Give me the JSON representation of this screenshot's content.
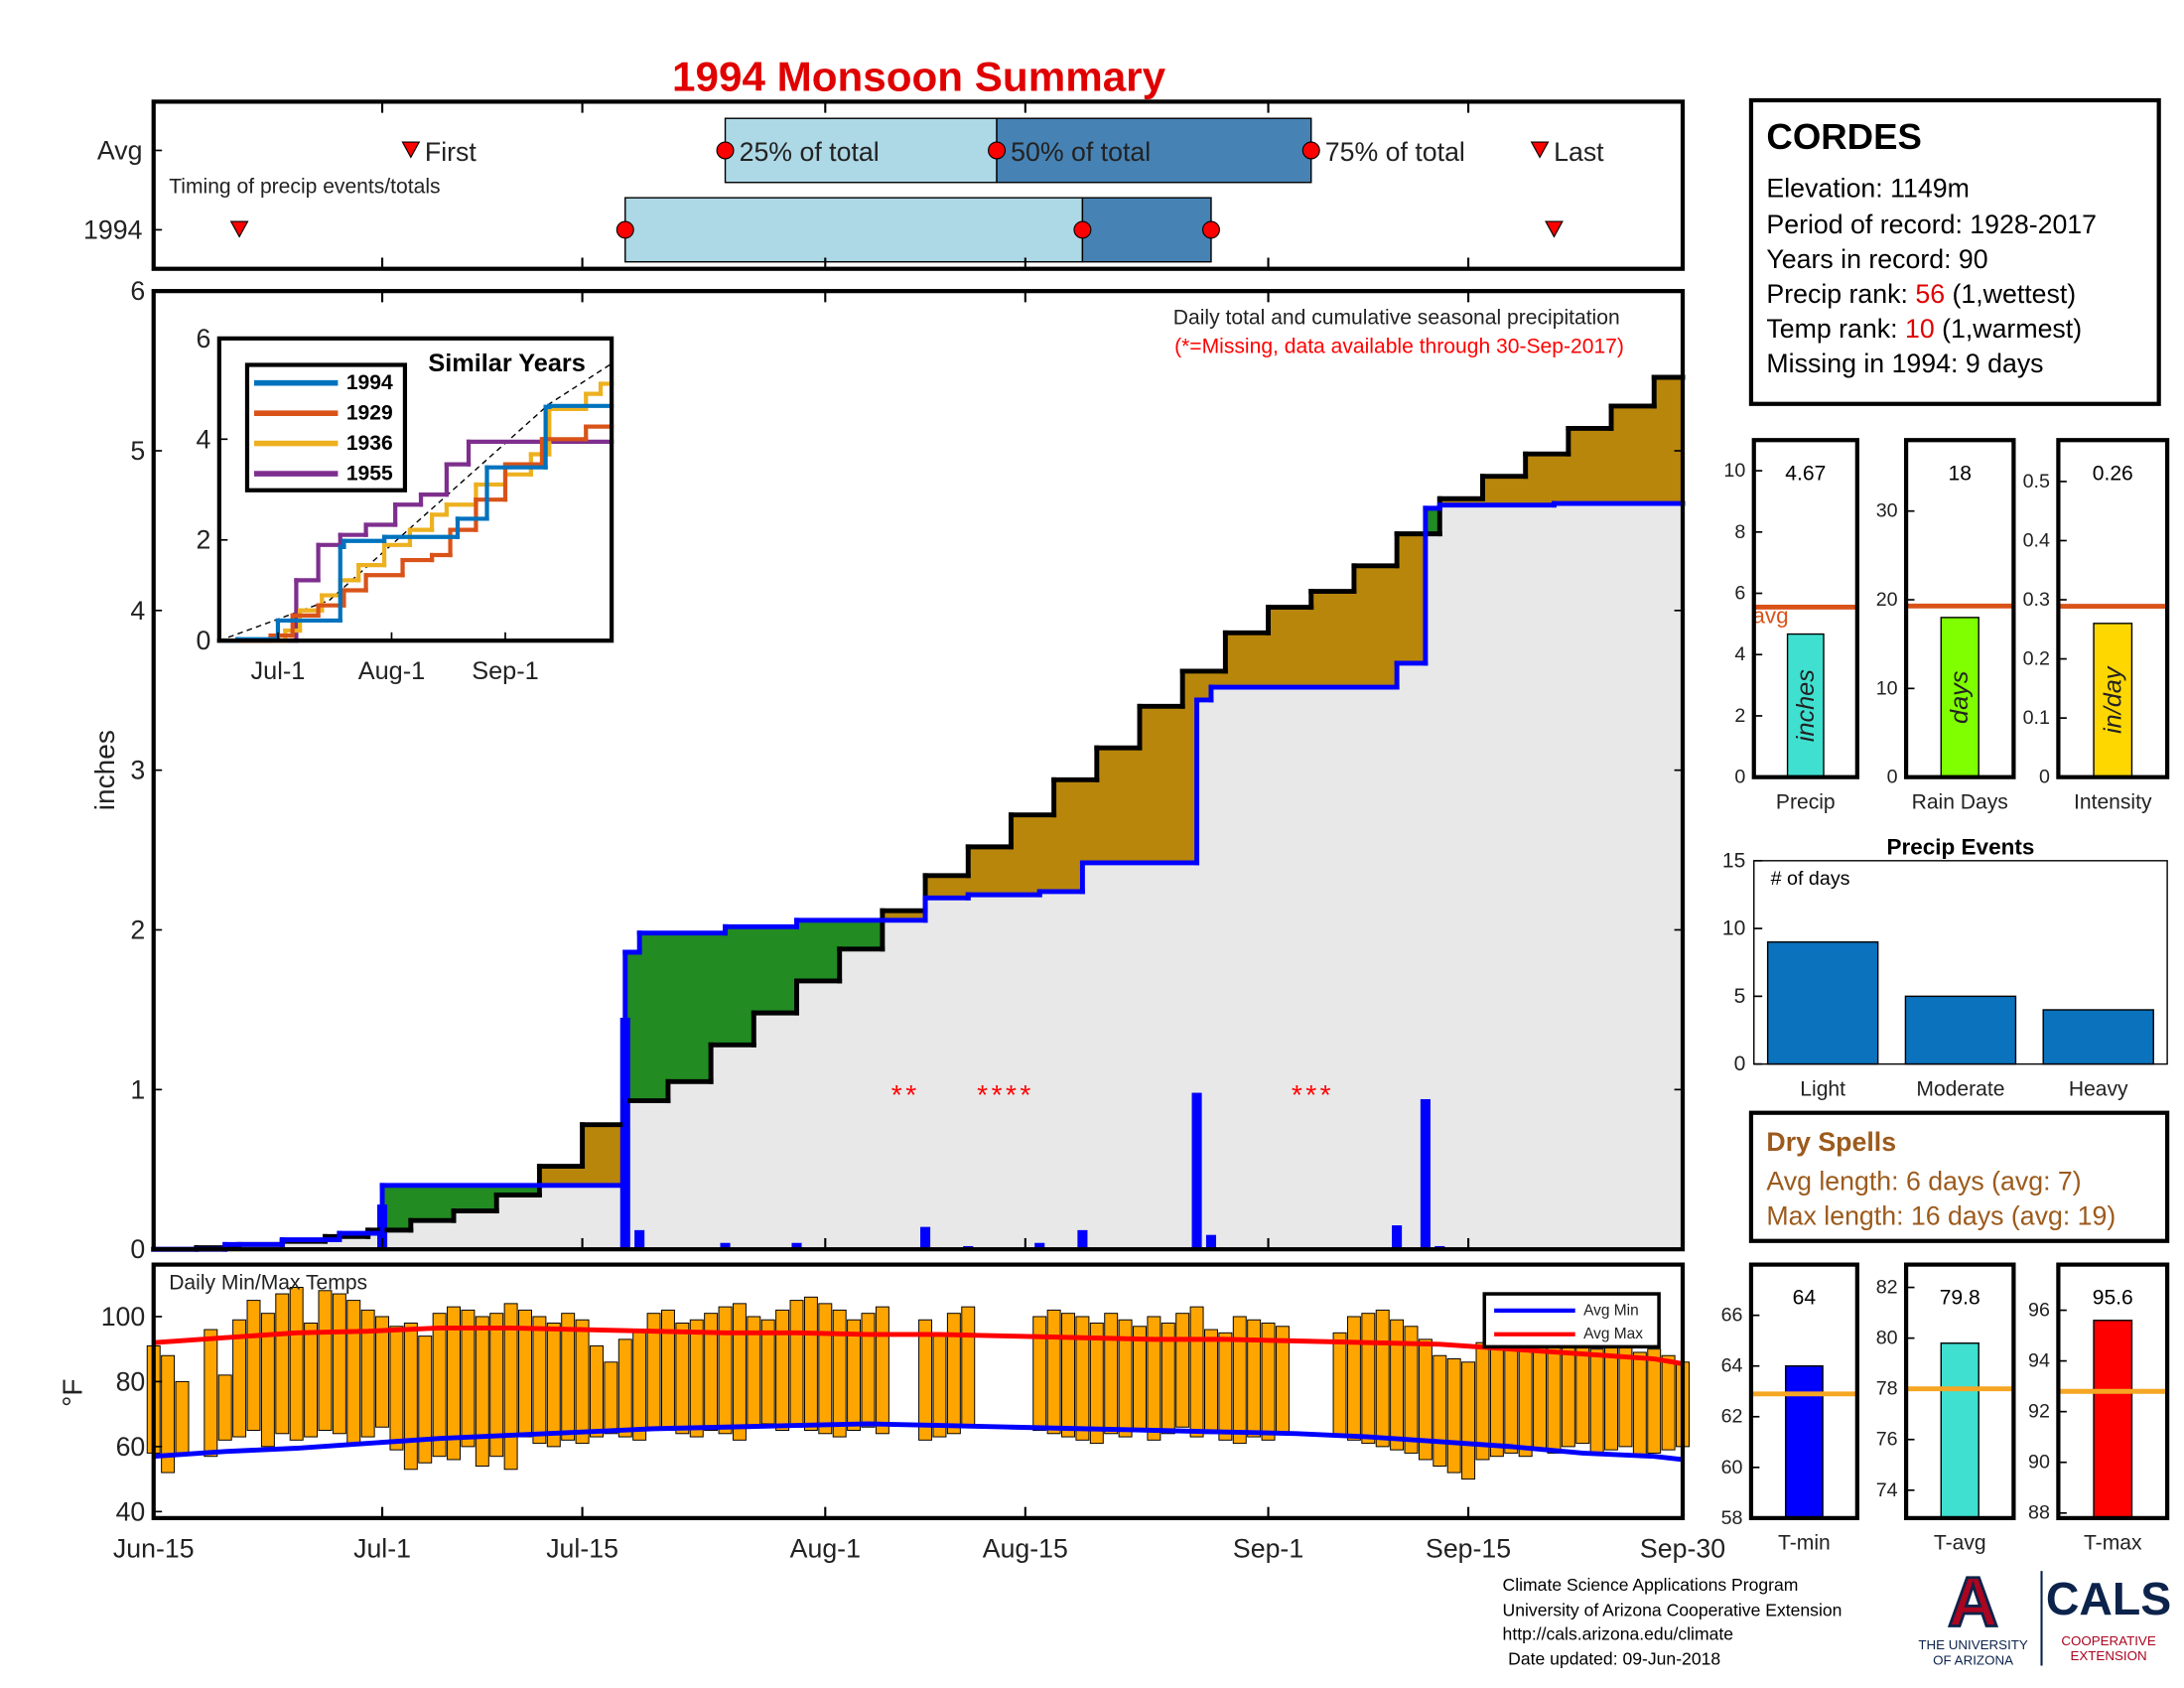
{
  "title": "1994 Monsoon Summary",
  "chart_data": [
    {
      "type": "timing",
      "subtitle": "Timing of precip events/totals",
      "marker_labels": [
        "First",
        "25% of total",
        "50% of total",
        "75% of total",
        "Last"
      ],
      "xlim": [
        0,
        107
      ],
      "marker_color": "#ff0000",
      "bar_colors": [
        "#add8e6",
        "#4682b4"
      ],
      "series": [
        {
          "name": "Avg",
          "values": [
            18,
            40,
            59,
            81,
            97
          ]
        },
        {
          "name": "1994",
          "values": [
            6,
            33,
            65,
            74,
            98
          ]
        }
      ]
    },
    {
      "type": "step",
      "ylabel": "inches",
      "xlim": [
        0,
        107
      ],
      "ylim": [
        0,
        6
      ],
      "yticks": [
        0,
        1,
        2,
        3,
        4,
        5,
        6
      ],
      "annotation": "Daily total and cumulative seasonal precipitation",
      "note": "(*=Missing, data available through 30-Sep-2017)",
      "fills": {
        "above": "#228b22",
        "below": "#b8860b",
        "base": "#e8e8e8"
      },
      "series": [
        {
          "color": "#000000",
          "x": [
            0,
            3,
            6,
            9,
            12,
            15,
            18,
            21,
            24,
            27,
            30,
            33,
            36,
            39,
            42,
            45,
            48,
            51,
            54,
            57,
            60,
            63,
            66,
            69,
            72,
            75,
            78,
            81,
            84,
            87,
            90,
            93,
            96,
            99,
            102,
            105
          ],
          "values": [
            0,
            0.01,
            0.03,
            0.05,
            0.08,
            0.12,
            0.18,
            0.24,
            0.34,
            0.52,
            0.78,
            0.93,
            1.05,
            1.28,
            1.48,
            1.68,
            1.88,
            2.12,
            2.34,
            2.52,
            2.72,
            2.94,
            3.14,
            3.4,
            3.62,
            3.86,
            4.02,
            4.12,
            4.28,
            4.48,
            4.7,
            4.84,
            4.98,
            5.14,
            5.28,
            5.46
          ]
        },
        {
          "color": "#0000ff",
          "x": [
            0,
            5,
            9,
            13,
            16,
            33,
            34,
            40,
            45,
            54,
            57,
            62,
            65,
            73,
            74,
            87,
            89,
            90,
            98
          ],
          "values": [
            0,
            0.03,
            0.06,
            0.1,
            0.4,
            1.86,
            1.98,
            2.02,
            2.06,
            2.2,
            2.22,
            2.24,
            2.42,
            3.44,
            3.52,
            3.67,
            4.64,
            4.66,
            4.67
          ]
        }
      ],
      "bars": {
        "color": "#0000ff",
        "x": [
          16,
          33,
          34,
          40,
          45,
          54,
          57,
          62,
          65,
          73,
          74,
          87,
          89,
          90
        ],
        "values": [
          0.28,
          1.45,
          0.12,
          0.04,
          0.04,
          0.14,
          0.02,
          0.04,
          0.12,
          0.98,
          0.09,
          0.15,
          0.94,
          0.02
        ]
      },
      "missing_marker": "*",
      "missing_color": "#ff0000",
      "missing_x": [
        52,
        53,
        58,
        59,
        60,
        61,
        80,
        81,
        82
      ]
    },
    {
      "type": "step",
      "title": "Similar Years",
      "xlim": [
        0,
        107
      ],
      "ylim": [
        0,
        6
      ],
      "yticks": [
        0,
        2,
        4,
        6
      ],
      "xticks": [
        {
          "value": 16,
          "label": "Jul-1"
        },
        {
          "value": 47,
          "label": "Aug-1"
        },
        {
          "value": 78,
          "label": "Sep-1"
        }
      ],
      "series": [
        {
          "name": "1994",
          "color": "#0072bd",
          "x": [
            0,
            5,
            16,
            33,
            34,
            45,
            65,
            73,
            89,
            90
          ],
          "values": [
            0,
            0.03,
            0.4,
            1.86,
            1.98,
            2.06,
            2.42,
            3.44,
            4.64,
            4.66
          ]
        },
        {
          "name": "1929",
          "color": "#d95319",
          "x": [
            0,
            14,
            20,
            27,
            34,
            40,
            50,
            58,
            63,
            70,
            78,
            88,
            100
          ],
          "values": [
            0,
            0.1,
            0.5,
            0.7,
            1.0,
            1.3,
            1.6,
            1.7,
            2.2,
            2.8,
            3.5,
            4.0,
            4.25
          ]
        },
        {
          "name": "1936",
          "color": "#edb120",
          "x": [
            0,
            18,
            22,
            28,
            33,
            38,
            45,
            52,
            58,
            62,
            70,
            78,
            85,
            90,
            100,
            104
          ],
          "values": [
            0,
            0.2,
            0.6,
            0.9,
            1.2,
            1.5,
            1.9,
            2.2,
            2.5,
            2.7,
            3.1,
            3.3,
            3.7,
            4.6,
            4.9,
            5.1
          ]
        },
        {
          "name": "1955",
          "color": "#7e2f8e",
          "x": [
            0,
            21,
            27,
            33,
            40,
            48,
            55,
            62,
            68
          ],
          "values": [
            0,
            1.2,
            1.9,
            2.1,
            2.3,
            2.7,
            2.9,
            3.5,
            3.95
          ]
        }
      ],
      "reference": {
        "color": "#000000",
        "x": [
          0,
          30,
          50,
          70,
          90,
          107
        ],
        "values": [
          0,
          0.8,
          2.1,
          3.4,
          4.7,
          5.5
        ]
      }
    },
    {
      "type": "range",
      "title": "Daily Min/Max Temps",
      "ylabel": "°F",
      "xlim": [
        0,
        107
      ],
      "ylim": [
        38,
        116
      ],
      "yticks": [
        40,
        60,
        80,
        100
      ],
      "xticks": [
        {
          "value": 0,
          "label": "Jun-15"
        },
        {
          "value": 16,
          "label": "Jul-1"
        },
        {
          "value": 30,
          "label": "Jul-15"
        },
        {
          "value": 47,
          "label": "Aug-1"
        },
        {
          "value": 61,
          "label": "Aug-15"
        },
        {
          "value": 78,
          "label": "Sep-1"
        },
        {
          "value": 92,
          "label": "Sep-15"
        },
        {
          "value": 107,
          "label": "Sep-30"
        }
      ],
      "bars": {
        "color": "#ffa500",
        "x": [
          0,
          1,
          2,
          3,
          4,
          5,
          6,
          7,
          8,
          9,
          10,
          11,
          12,
          13,
          14,
          15,
          16,
          17,
          18,
          19,
          20,
          21,
          22,
          23,
          24,
          25,
          26,
          27,
          28,
          29,
          30,
          31,
          32,
          33,
          34,
          35,
          36,
          37,
          38,
          39,
          40,
          41,
          42,
          43,
          44,
          45,
          46,
          47,
          48,
          49,
          50,
          51,
          52,
          53,
          54,
          55,
          56,
          57,
          58,
          59,
          60,
          61,
          62,
          63,
          64,
          65,
          66,
          67,
          68,
          69,
          70,
          71,
          72,
          73,
          74,
          75,
          76,
          77,
          78,
          79,
          80,
          81,
          82,
          83,
          84,
          85,
          86,
          87,
          88,
          89,
          90,
          91,
          92,
          93,
          94,
          95,
          96,
          97,
          98,
          99,
          100,
          101,
          102,
          103,
          104,
          105,
          106,
          107
        ],
        "low": [
          58,
          52,
          58,
          null,
          57,
          62,
          63,
          65,
          60,
          64,
          62,
          63,
          65,
          64,
          61,
          63,
          66,
          59,
          53,
          55,
          57,
          56,
          60,
          54,
          57,
          53,
          63,
          61,
          60,
          62,
          61,
          63,
          64,
          63,
          62,
          66,
          65,
          64,
          63,
          65,
          64,
          62,
          66,
          67,
          65,
          66,
          65,
          64,
          63,
          65,
          66,
          64,
          null,
          null,
          62,
          63,
          64,
          66,
          null,
          null,
          null,
          null,
          65,
          64,
          63,
          62,
          61,
          64,
          63,
          65,
          62,
          64,
          66,
          63,
          64,
          62,
          61,
          63,
          62,
          64,
          null,
          null,
          null,
          63,
          62,
          61,
          60,
          59,
          58,
          56,
          54,
          52,
          50,
          56,
          57,
          58,
          57,
          59,
          58,
          60,
          61,
          58,
          59,
          60,
          57,
          58,
          59,
          60
        ],
        "high": [
          91,
          88,
          80,
          null,
          96,
          82,
          99,
          105,
          101,
          107,
          109,
          98,
          108,
          107,
          105,
          102,
          100,
          97,
          98,
          94,
          101,
          103,
          102,
          100,
          101,
          104,
          102,
          100,
          98,
          101,
          99,
          91,
          86,
          93,
          96,
          101,
          102,
          98,
          99,
          101,
          103,
          104,
          100,
          99,
          102,
          105,
          106,
          104,
          102,
          99,
          101,
          103,
          null,
          null,
          99,
          94,
          101,
          103,
          null,
          null,
          null,
          null,
          100,
          102,
          101,
          100,
          98,
          101,
          99,
          97,
          100,
          98,
          101,
          103,
          96,
          95,
          100,
          99,
          98,
          97,
          null,
          null,
          null,
          95,
          100,
          101,
          102,
          99,
          97,
          93,
          88,
          87,
          86,
          92,
          95,
          96,
          94,
          93,
          95,
          94,
          92,
          90,
          93,
          91,
          89,
          90,
          88,
          86
        ]
      },
      "series": [
        {
          "name": "Avg Min",
          "color": "#0000ff",
          "x": [
            0,
            5,
            10,
            15,
            20,
            25,
            30,
            35,
            40,
            45,
            50,
            55,
            60,
            65,
            70,
            75,
            80,
            85,
            90,
            95,
            100,
            105,
            107
          ],
          "values": [
            57,
            58.5,
            59.5,
            61,
            62.5,
            63.5,
            64.5,
            65.5,
            66,
            66.5,
            67,
            66.5,
            66,
            65.5,
            65,
            64.5,
            64,
            63,
            61.5,
            60,
            58,
            57,
            56
          ]
        },
        {
          "name": "Avg Max",
          "color": "#ff0000",
          "x": [
            0,
            5,
            10,
            15,
            20,
            25,
            30,
            35,
            40,
            45,
            50,
            55,
            60,
            65,
            70,
            75,
            80,
            85,
            90,
            95,
            100,
            105,
            107
          ],
          "values": [
            92,
            93.5,
            95,
            95.5,
            96.5,
            96.5,
            96,
            95.5,
            95,
            95,
            94.5,
            94.5,
            94,
            93.5,
            93,
            93,
            92.5,
            92,
            91.5,
            90,
            88.5,
            87,
            85.5
          ]
        }
      ]
    },
    {
      "type": "bar",
      "categories": [
        "Precip"
      ],
      "values": [
        4.67
      ],
      "unit_label": "inches",
      "color": "#40e0d0",
      "avg": 5.55,
      "avg_label": "avg",
      "avg_color": "#d95319",
      "ylim": [
        0,
        11
      ],
      "yticks": [
        0,
        2,
        4,
        6,
        8,
        10
      ]
    },
    {
      "type": "bar",
      "categories": [
        "Rain Days"
      ],
      "values": [
        18
      ],
      "unit_label": "days",
      "color": "#7fff00",
      "avg": 19.3,
      "avg_color": "#d95319",
      "ylim": [
        0,
        38
      ],
      "yticks": [
        0,
        10,
        20,
        30
      ]
    },
    {
      "type": "bar",
      "categories": [
        "Intensity"
      ],
      "values": [
        0.26
      ],
      "unit_label": "in/day",
      "color": "#ffd700",
      "avg": 0.289,
      "avg_color": "#d95319",
      "ylim": [
        0,
        0.57
      ],
      "yticks": [
        0,
        0.1,
        0.2,
        0.3,
        0.4,
        0.5
      ]
    },
    {
      "type": "bar",
      "title": "Precip Events",
      "ylabel": "# of days",
      "categories": [
        "Light",
        "Moderate",
        "Heavy"
      ],
      "values": [
        9,
        5,
        4
      ],
      "color": "#0b72bd",
      "ylim": [
        0,
        15
      ],
      "yticks": [
        0,
        5,
        10,
        15
      ]
    },
    {
      "type": "bar",
      "categories": [
        "T-min"
      ],
      "values": [
        64
      ],
      "color": "#0000ff",
      "avg": 62.9,
      "avg_color": "#f5a623",
      "ylim": [
        58,
        68
      ],
      "yticks": [
        58,
        60,
        62,
        64,
        66
      ]
    },
    {
      "type": "bar",
      "categories": [
        "T-avg"
      ],
      "values": [
        79.8
      ],
      "color": "#40e0d0",
      "avg": 78,
      "avg_color": "#f5a623",
      "ylim": [
        72.9,
        82.9
      ],
      "yticks": [
        74,
        76,
        78,
        80,
        82
      ]
    },
    {
      "type": "bar",
      "categories": [
        "T-max"
      ],
      "values": [
        95.6
      ],
      "color": "#ff0000",
      "avg": 92.8,
      "avg_color": "#f5a623",
      "ylim": [
        87.8,
        97.8
      ],
      "yticks": [
        88,
        90,
        92,
        94,
        96
      ]
    }
  ],
  "station": {
    "name": "CORDES",
    "elevation": "Elevation: 1149m",
    "period": "Period of record: 1928-2017",
    "years": "Years in record: 90",
    "precip_rank": {
      "label": "Precip rank:",
      "value": "56",
      "note": "(1,wettest)"
    },
    "temp_rank": {
      "label": "Temp rank:",
      "value": "10",
      "note": "(1,warmest)"
    },
    "missing": "Missing in 1994: 9 days"
  },
  "dry_spells": {
    "title": "Dry Spells",
    "avg": "Avg length: 6 days (avg: 7)",
    "max": "Max length: 16 days (avg: 19)"
  },
  "footer": [
    "Climate Science Applications Program",
    "University of Arizona Cooperative Extension",
    "http://cals.arizona.edu/climate",
    "Date updated: 09-Jun-2018"
  ],
  "logo": {
    "mark": "A",
    "university": [
      "THE UNIVERSITY",
      "OF ARIZONA"
    ],
    "cals": "CALS",
    "extension": [
      "COOPERATIVE",
      "EXTENSION"
    ]
  }
}
